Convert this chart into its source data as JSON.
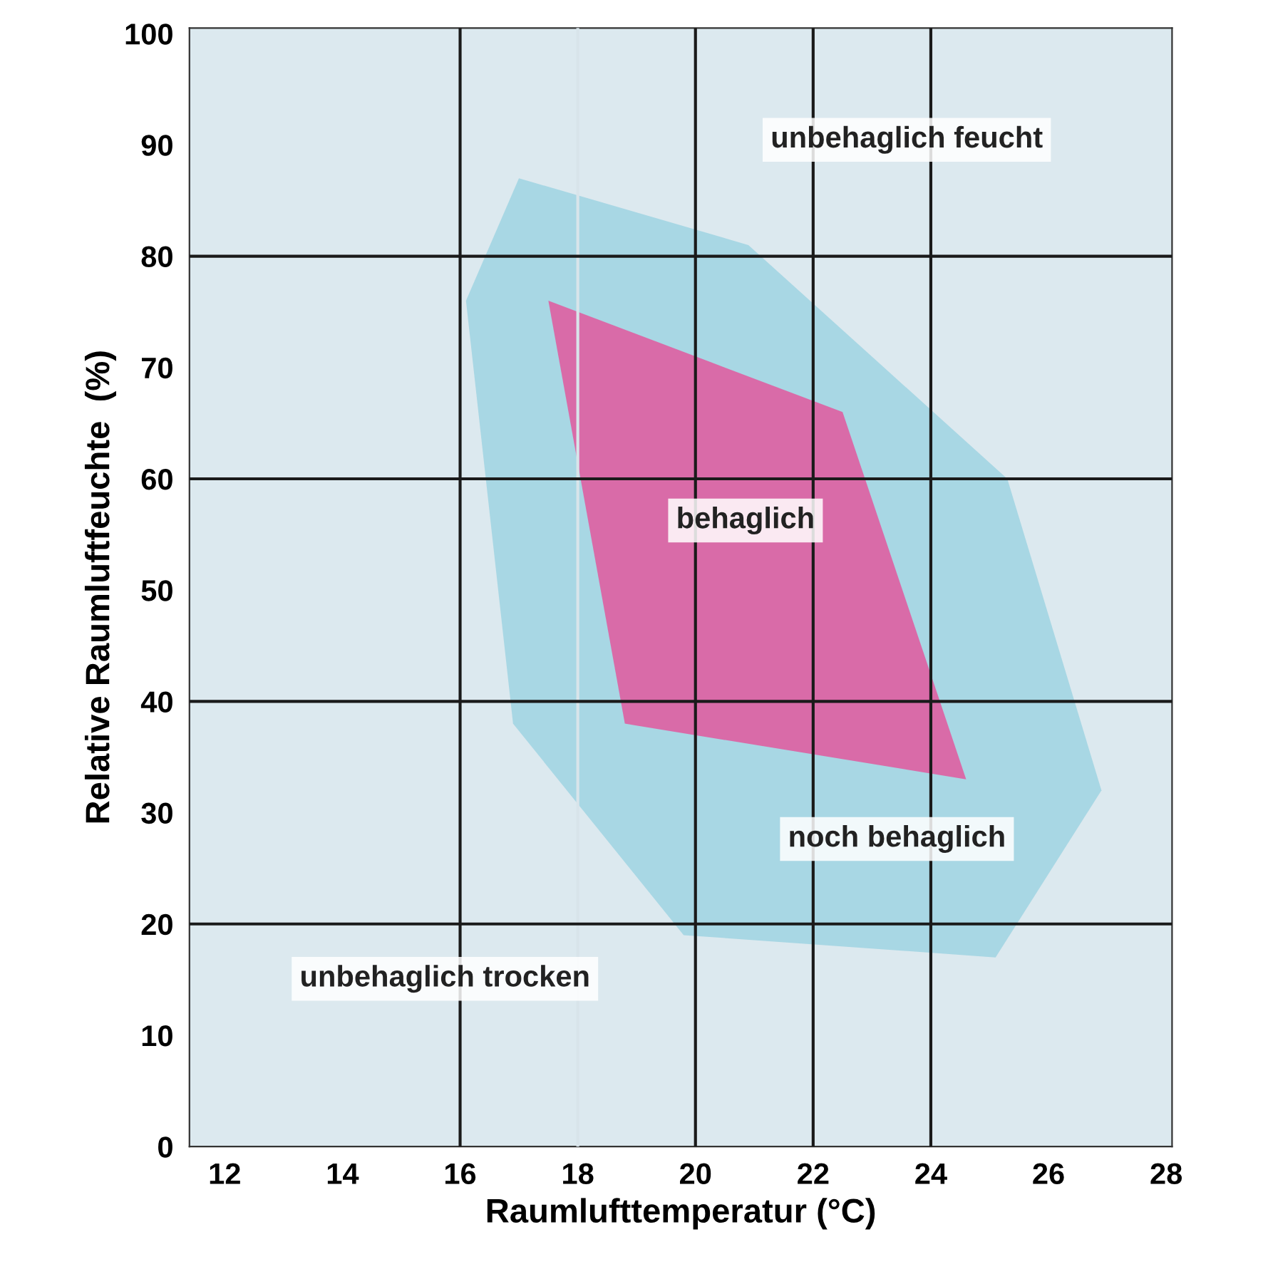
{
  "chart_data": {
    "type": "area",
    "xlabel": "Raumlufttemperatur (°C)",
    "ylabel": "Relative Raumluftfeuchte  (%)",
    "xlim": [
      11.4,
      28.1
    ],
    "ylim": [
      0,
      100.5
    ],
    "xticks": [
      12,
      14,
      16,
      18,
      20,
      22,
      24,
      26,
      28
    ],
    "yticks": [
      0,
      10,
      20,
      30,
      40,
      50,
      60,
      70,
      80,
      90,
      100
    ],
    "grid": false,
    "series": [
      {
        "name": "noch behaglich",
        "color": "#9fd4e2",
        "x": [
          17.0,
          20.9,
          25.3,
          26.9,
          25.1,
          19.8,
          16.9,
          16.1
        ],
        "values": [
          87,
          81,
          60,
          32,
          17,
          19,
          38,
          76
        ]
      },
      {
        "name": "behaglich",
        "color": "#e2589e",
        "x": [
          17.5,
          22.5,
          24.6,
          18.8
        ],
        "values": [
          76,
          66,
          33,
          38
        ]
      }
    ],
    "ref_lines": [
      {
        "axis": "x",
        "value": 16,
        "color": "#1a1a1a"
      },
      {
        "axis": "x",
        "value": 18,
        "color": "#d8e4ea"
      },
      {
        "axis": "x",
        "value": 20,
        "color": "#1a1a1a"
      },
      {
        "axis": "x",
        "value": 22,
        "color": "#1a1a1a"
      },
      {
        "axis": "x",
        "value": 24,
        "color": "#1a1a1a"
      },
      {
        "axis": "y",
        "value": 20,
        "color": "#1a1a1a"
      },
      {
        "axis": "y",
        "value": 40,
        "color": "#1a1a1a"
      },
      {
        "axis": "y",
        "value": 60,
        "color": "#1a1a1a"
      },
      {
        "axis": "y",
        "value": 80,
        "color": "#1a1a1a"
      }
    ],
    "annotations": [
      "unbehaglich feucht",
      "unbehaglich trocken"
    ]
  }
}
